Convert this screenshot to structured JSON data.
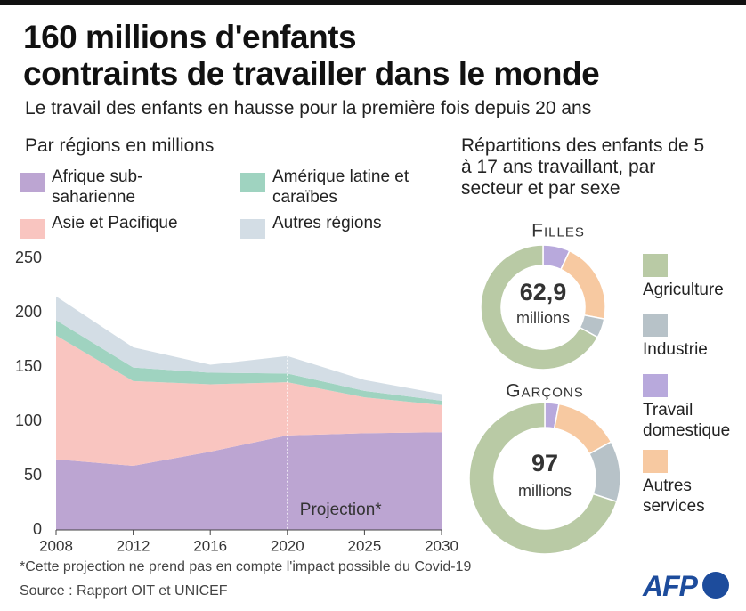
{
  "title": [
    "160 millions d'enfants",
    "contraints de travailler dans le monde"
  ],
  "subtitle": "Le travail des enfants en hausse pour la première fois depuis 20 ans",
  "footnote": "*Cette projection ne prend pas en compte l'impact possible du Covid-19",
  "source": "Source : Rapport OIT et UNICEF",
  "logo": "AFP",
  "chart_data": [
    {
      "type": "stacked-area",
      "title": "Par régions en millions",
      "categories": [
        "2008",
        "2012",
        "2016",
        "2020",
        "2025",
        "2030"
      ],
      "series": [
        {
          "name": "Afrique sub-saharienne",
          "color": "#bca5d2",
          "values": [
            65,
            59,
            72,
            87,
            89,
            90
          ]
        },
        {
          "name": "Asie et Pacifique",
          "color": "#f9c5c0",
          "values": [
            114,
            78,
            62,
            49,
            33,
            25
          ]
        },
        {
          "name": "Amérique latine et caraïbes",
          "color": "#9fd3c0",
          "values": [
            14,
            12.5,
            10.7,
            8,
            6,
            4
          ]
        },
        {
          "name": "Autres régions",
          "color": "#d3dde5",
          "values": [
            22,
            18.5,
            7.3,
            16,
            10,
            6
          ]
        }
      ],
      "ylim": [
        0,
        250
      ],
      "yticks": [
        0,
        50,
        100,
        150,
        200,
        250
      ],
      "annotation": "Projection*"
    },
    {
      "type": "donut",
      "title": "Répartitions des enfants de 5 à 17 ans travaillant, par secteur et par sexe",
      "categories": [
        "Agriculture",
        "Industrie",
        "Travail domestique",
        "Autres services"
      ],
      "colors": [
        "#b9caa5",
        "#b7c2c8",
        "#b8a9dc",
        "#f7c9a1"
      ],
      "unit": "millions",
      "series": [
        {
          "name": "Filles",
          "values": [
            67,
            5,
            7,
            21
          ],
          "total": {
            "value": 62.9,
            "label": "62,9"
          }
        },
        {
          "name": "Garçons",
          "values": [
            70,
            13,
            3,
            14
          ],
          "total": 97
        }
      ]
    }
  ]
}
